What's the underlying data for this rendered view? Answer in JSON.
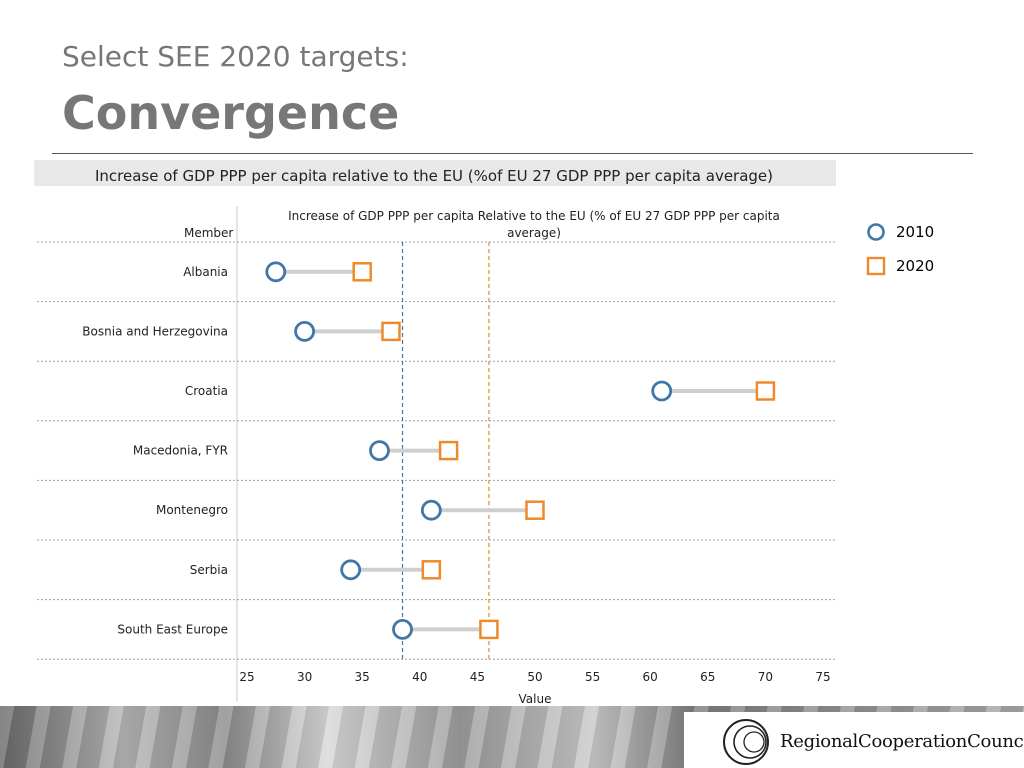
{
  "header": {
    "subtitle": "Select SEE 2020 targets:",
    "title": "Convergence"
  },
  "legend": {
    "items": [
      {
        "label": "2010",
        "shape": "circle",
        "color": "#3f77a8"
      },
      {
        "label": "2020",
        "shape": "square",
        "color": "#ef8a2c"
      }
    ]
  },
  "logo": {
    "name": "RegionalCooperationCouncil"
  },
  "chart_data": {
    "type": "scatter",
    "title": "Increase of GDP PPP per capita relative to the EU (%of EU 27 GDP PPP per capita average)",
    "inner_title": "Increase of GDP PPP per capita Relative to the EU (% of EU 27 GDP PPP per capita average)",
    "ylabel": "Member",
    "xlabel": "Value",
    "xlim": [
      25,
      75
    ],
    "xticks": [
      25,
      30,
      35,
      40,
      45,
      50,
      55,
      60,
      65,
      70,
      75
    ],
    "categories": [
      "Albania",
      "Bosnia and Herzegovina",
      "Croatia",
      "Macedonia, FYR",
      "Montenegro",
      "Serbia",
      "South East Europe"
    ],
    "series": [
      {
        "name": "2010",
        "marker": "circle",
        "color": "#3f77a8",
        "values": [
          27.5,
          30,
          61,
          36.5,
          41,
          34,
          38.5
        ]
      },
      {
        "name": "2020",
        "marker": "square",
        "color": "#ef8a2c",
        "values": [
          35,
          37.5,
          70,
          42.5,
          50,
          41,
          46
        ]
      }
    ],
    "reference_lines": [
      {
        "series": "2010",
        "value": 38.5,
        "color": "#3f77a8",
        "style": "dashed"
      },
      {
        "series": "2020",
        "value": 46,
        "color": "#ef8a2c",
        "style": "dashed"
      }
    ],
    "grid": true,
    "legend_position": "right"
  }
}
